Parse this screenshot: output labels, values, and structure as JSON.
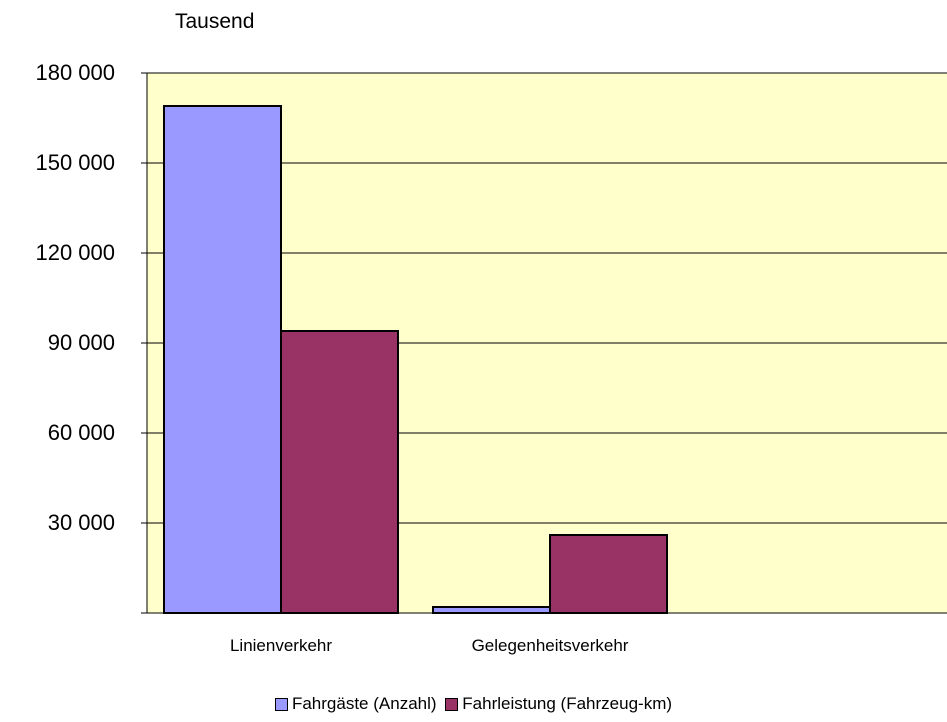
{
  "chart_data": {
    "type": "bar",
    "unit_label": "Tausend",
    "categories": [
      "Linienverkehr",
      "Gelegenheitsverkehr"
    ],
    "series": [
      {
        "name": "Fahrgäste (Anzahl)",
        "color": "#9999FF",
        "values": [
          169000,
          2000
        ]
      },
      {
        "name": "Fahrleistung (Fahrzeug-km)",
        "color": "#993366",
        "values": [
          94000,
          26000
        ]
      }
    ],
    "ylim": [
      0,
      180000
    ],
    "yticks": [
      "30 000",
      "60 000",
      "90 000",
      "120 000",
      "150 000",
      "180 000"
    ],
    "ytick_values": [
      30000,
      60000,
      90000,
      120000,
      150000,
      180000
    ],
    "grid": true,
    "plot_background": "#FFFFCC",
    "legend_position": "bottom"
  }
}
